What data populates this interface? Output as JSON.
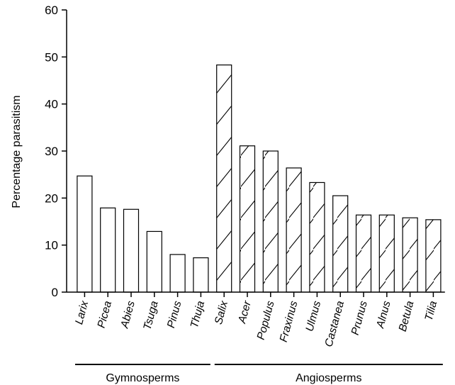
{
  "chart_data": {
    "type": "bar",
    "title": "",
    "ylabel": "Percentage parasitism",
    "xlabel": "",
    "ylim": [
      0,
      60
    ],
    "yticks": [
      "0",
      "10",
      "20",
      "30",
      "40",
      "50",
      "60"
    ],
    "grid": false,
    "categories": [
      "Larix",
      "Picea",
      "Abies",
      "Tsuga",
      "Pinus",
      "Thuja",
      "Salix",
      "Acer",
      "Populus",
      "Fraxinus",
      "Ulmus",
      "Castanea",
      "Prunus",
      "Alnus",
      "Betula",
      "Tilia"
    ],
    "values": [
      24.7,
      17.9,
      17.6,
      12.9,
      8.0,
      7.3,
      48.3,
      31.1,
      30.0,
      26.4,
      23.3,
      20.5,
      16.4,
      16.4,
      15.8,
      15.4
    ],
    "groups": [
      {
        "label": "Gymnosperms",
        "start": 0,
        "end": 5,
        "fill": "open"
      },
      {
        "label": "Angiosperms",
        "start": 6,
        "end": 15,
        "fill": "hatched"
      }
    ]
  }
}
